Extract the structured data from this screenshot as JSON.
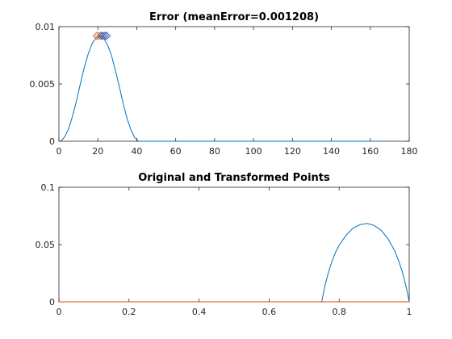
{
  "colors": {
    "background": "#ffffff",
    "axes": "#262626",
    "series_blue": "#0072bd",
    "series_orange": "#d95319",
    "marker_yellow": "#edb120",
    "marker_purple": "#7e2f8e"
  },
  "chart_data": [
    {
      "type": "line",
      "title": "Error (meanError=0.001208)",
      "xlabel": "",
      "ylabel": "",
      "xlim": [
        0,
        180
      ],
      "ylim": [
        0,
        0.01
      ],
      "grid": false,
      "x_ticks": [
        0,
        20,
        40,
        60,
        80,
        100,
        120,
        140,
        160,
        180
      ],
      "x_tick_labels": [
        "0",
        "20",
        "40",
        "60",
        "80",
        "100",
        "120",
        "140",
        "160",
        "180"
      ],
      "y_ticks": [
        0,
        0.005,
        0.01
      ],
      "y_tick_labels": [
        "0",
        "0.005",
        "0.01"
      ],
      "series": [
        {
          "color": "#0072bd",
          "x": [
            1,
            3,
            5,
            7,
            9,
            11,
            13,
            15,
            17,
            19,
            21,
            23,
            25,
            27,
            29,
            31,
            33,
            35,
            37,
            39,
            41,
            45,
            60,
            80,
            100,
            120,
            140,
            165
          ],
          "y": [
            0,
            0.0004,
            0.0011,
            0.0022,
            0.0035,
            0.005,
            0.0064,
            0.0076,
            0.0085,
            0.009,
            0.0092,
            0.009,
            0.0084,
            0.0075,
            0.0062,
            0.0048,
            0.0033,
            0.002,
            0.001,
            0.0003,
            0,
            0,
            0,
            0,
            0,
            0,
            0,
            0
          ]
        }
      ],
      "markers": {
        "shape": "diamond",
        "x": [
          19.5,
          20.5,
          21.5,
          22.5,
          23.5,
          24.5
        ],
        "y": [
          0.0092,
          0.0092,
          0.0092,
          0.0092,
          0.0092,
          0.0092
        ],
        "colors": [
          "#d95319",
          "#edb120",
          "#7e2f8e",
          "#0072bd",
          "#7e2f8e",
          "#0072bd"
        ]
      }
    },
    {
      "type": "line",
      "title": "Original and Transformed Points",
      "xlabel": "",
      "ylabel": "",
      "xlim": [
        0,
        1
      ],
      "ylim": [
        0,
        0.1
      ],
      "grid": false,
      "x_ticks": [
        0,
        0.2,
        0.4,
        0.6,
        0.8,
        1
      ],
      "x_tick_labels": [
        "0",
        "0.2",
        "0.4",
        "0.6",
        "0.8",
        "1"
      ],
      "y_ticks": [
        0,
        0.05,
        0.1
      ],
      "y_tick_labels": [
        "0",
        "0.05",
        "0.1"
      ],
      "series": [
        {
          "color": "#0072bd",
          "x": [
            0.75,
            0.76,
            0.77,
            0.78,
            0.79,
            0.8,
            0.82,
            0.84,
            0.86,
            0.88,
            0.9,
            0.92,
            0.94,
            0.96,
            0.97,
            0.98,
            0.99,
            0.995,
            1.0
          ],
          "y": [
            0,
            0.0147,
            0.0264,
            0.0359,
            0.0434,
            0.0494,
            0.0582,
            0.0644,
            0.0674,
            0.0684,
            0.0667,
            0.0624,
            0.0548,
            0.0437,
            0.0356,
            0.0264,
            0.0147,
            0.0077,
            0
          ]
        },
        {
          "color": "#d95319",
          "x": [
            0,
            1
          ],
          "y": [
            0,
            0
          ]
        }
      ]
    }
  ]
}
